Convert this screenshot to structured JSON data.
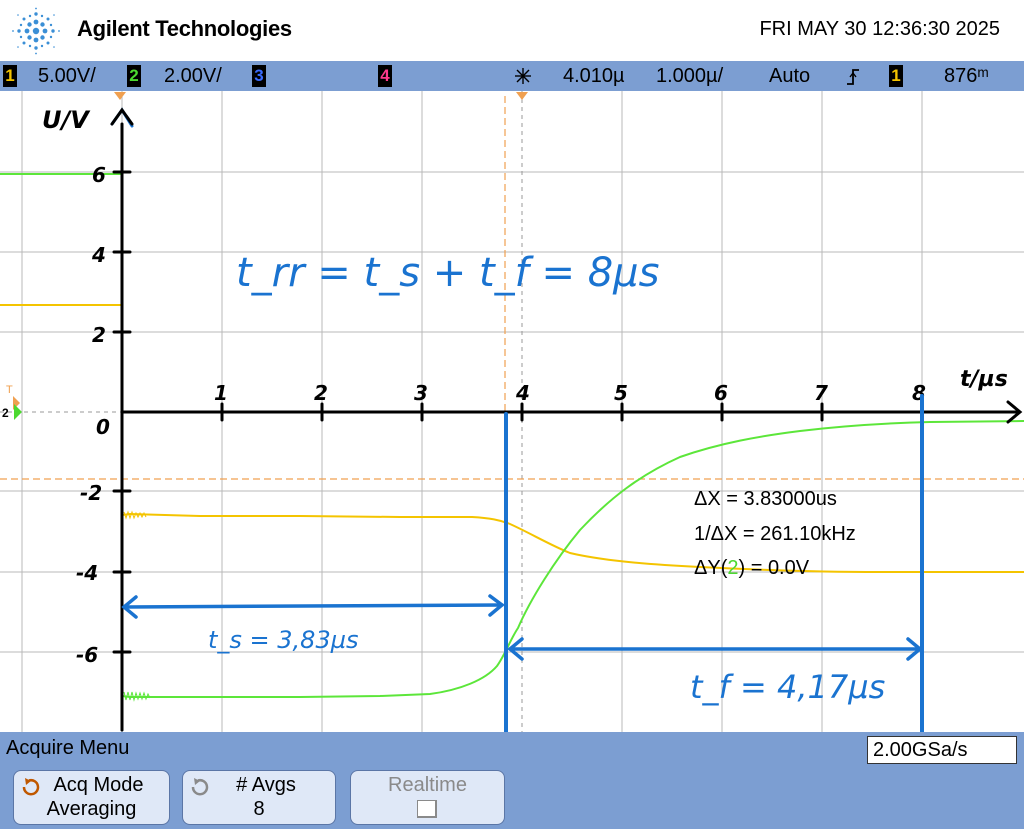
{
  "header": {
    "brand": "Agilent Technologies",
    "datetime": "FRI MAY 30 12:36:30 2025"
  },
  "status": {
    "ch1": {
      "num": "1",
      "scale": "5.00V/",
      "color": "#f4c400"
    },
    "ch2": {
      "num": "2",
      "scale": "2.00V/",
      "color": "#4cd930"
    },
    "ch3": {
      "num": "3",
      "color": "#3a6cff"
    },
    "ch4": {
      "num": "4",
      "color": "#ff3a8c"
    },
    "time_offset": "4.010µ",
    "time_scale": "1.000µ/",
    "trigger_mode": "Auto",
    "trigger_source": "1",
    "trigger_level": "876ᵐ"
  },
  "screen": {
    "annotations": {
      "y_unit": "U/V",
      "x_unit": "t/µs",
      "trr_formula": "t_rr = t_s + t_f = 8µs",
      "ts_label": "t_s = 3,83µs",
      "tf_label": "t_f = 4,17µs",
      "x_ticks": [
        "1",
        "2",
        "3",
        "4",
        "5",
        "6",
        "7",
        "8"
      ],
      "y_ticks": [
        "6",
        "4",
        "2",
        "0",
        "-2",
        "-4",
        "-6"
      ]
    },
    "measurements": {
      "dx": "ΔX = 3.83000us",
      "inv_dx": "1/ΔX = 261.10kHz",
      "dy_prefix": "ΔY(",
      "dy_channel": "2",
      "dy_suffix": ") = 0.0V"
    },
    "colors": {
      "ch1": "#f4c400",
      "ch2": "#5ce63a",
      "annotation": "#1a73d0",
      "grid": "#b0b0b0",
      "cursor": "#f0a050"
    },
    "ground_marker": "2",
    "trigger_marker": "T"
  },
  "menu": {
    "title": "Acquire Menu",
    "sample_rate": "2.00GSa/s",
    "softkeys": {
      "acq_mode_label": "Acq Mode",
      "acq_mode_value": "Averaging",
      "avgs_label": "# Avgs",
      "avgs_value": "8",
      "realtime_label": "Realtime"
    }
  }
}
